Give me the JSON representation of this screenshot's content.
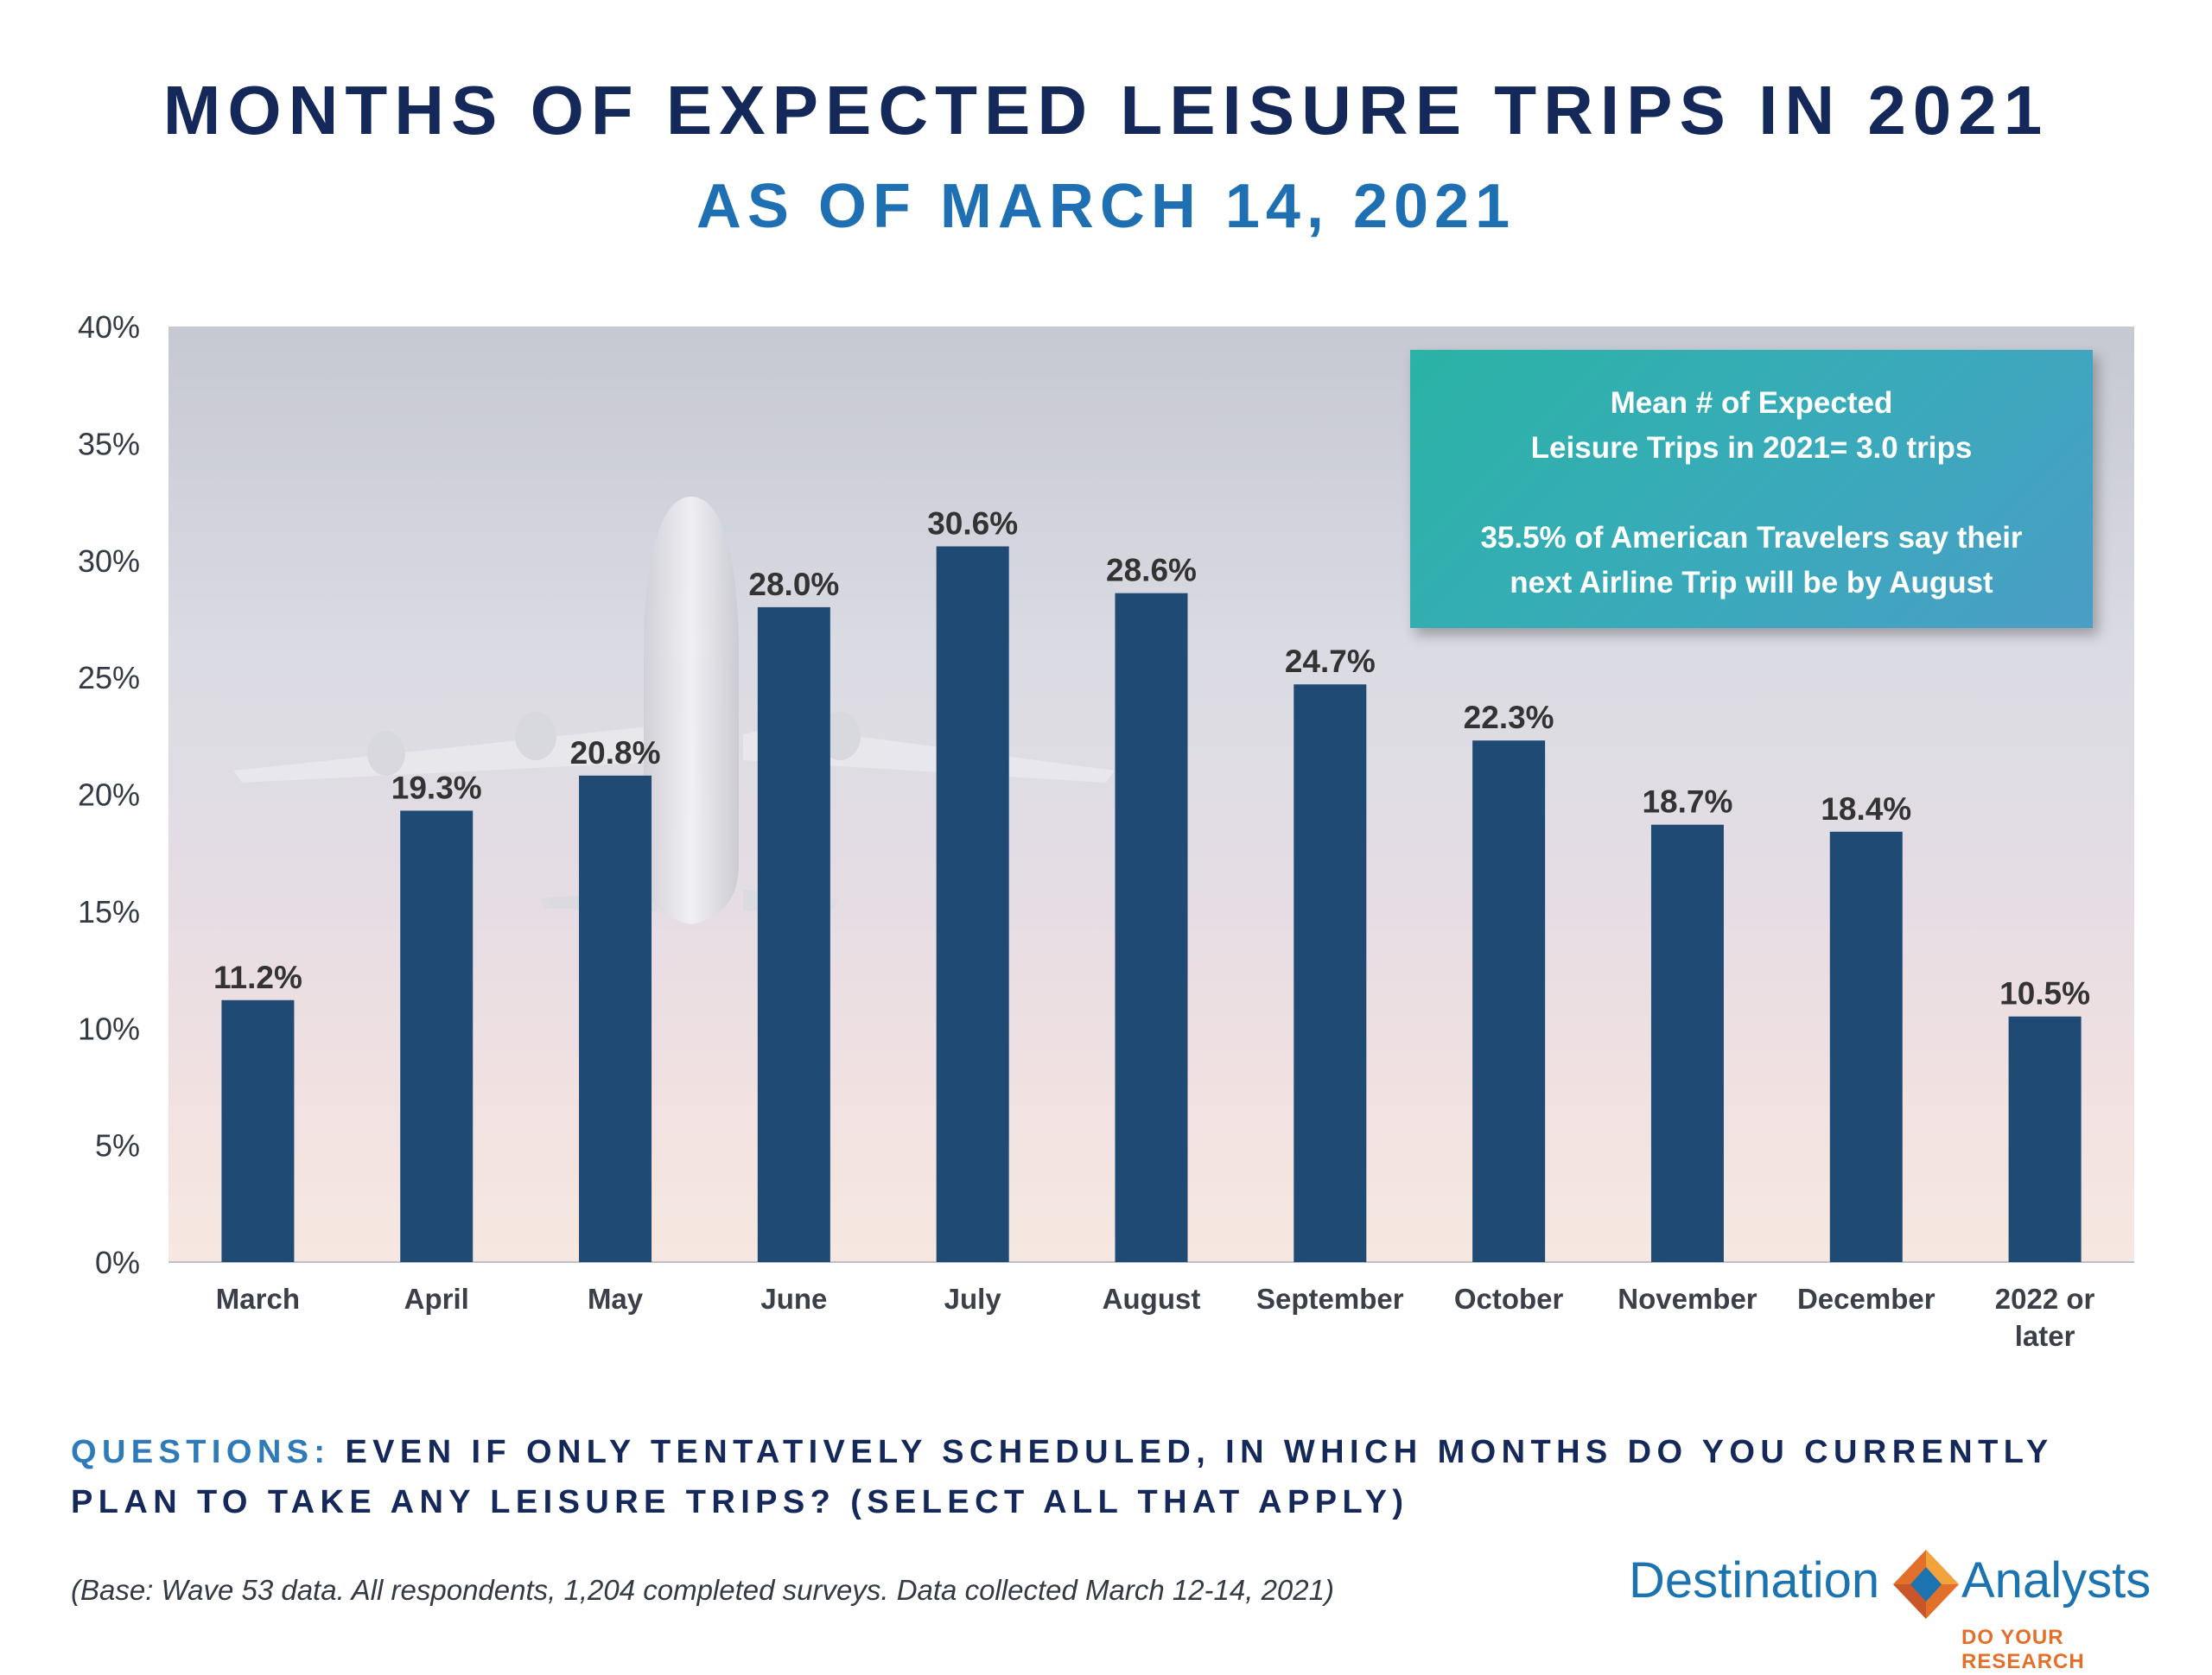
{
  "chart_data": {
    "type": "bar",
    "title": "MONTHS OF EXPECTED LEISURE TRIPS IN 2021",
    "subtitle": "AS OF MARCH 14, 2021",
    "categories": [
      "March",
      "April",
      "May",
      "June",
      "July",
      "August",
      "September",
      "October",
      "November",
      "December",
      "2022 or later"
    ],
    "category_lines": [
      [
        "March"
      ],
      [
        "April"
      ],
      [
        "May"
      ],
      [
        "June"
      ],
      [
        "July"
      ],
      [
        "August"
      ],
      [
        "September"
      ],
      [
        "October"
      ],
      [
        "November"
      ],
      [
        "December"
      ],
      [
        "2022 or",
        "later"
      ]
    ],
    "values": [
      11.2,
      19.3,
      20.8,
      28.0,
      30.6,
      28.6,
      24.7,
      22.3,
      18.7,
      18.4,
      10.5
    ],
    "labels": [
      "11.2%",
      "19.3%",
      "20.8%",
      "28.0%",
      "30.6%",
      "28.6%",
      "24.7%",
      "22.3%",
      "18.7%",
      "18.4%",
      "10.5%"
    ],
    "y_ticks": [
      0,
      5,
      10,
      15,
      20,
      25,
      30,
      35,
      40
    ],
    "y_tick_labels": [
      "0%",
      "5%",
      "10%",
      "15%",
      "20%",
      "25%",
      "30%",
      "35%",
      "40%"
    ],
    "ylim": [
      0,
      40
    ],
    "xlabel": "",
    "ylabel": "",
    "grid": false,
    "bar_color": "#1f4a74"
  },
  "callout": {
    "line1": "Mean # of Expected",
    "line2": "Leisure Trips in 2021= 3.0 trips",
    "line3": "35.5% of American Travelers say their",
    "line4": "next Airline Trip will be by August"
  },
  "question": {
    "label": "QUESTIONS:",
    "text": "EVEN IF ONLY TENTATIVELY SCHEDULED, IN WHICH MONTHS DO YOU CURRENTLY PLAN TO TAKE ANY LEISURE TRIPS? (SELECT ALL THAT APPLY)"
  },
  "base_note": "(Base: Wave 53 data. All respondents, 1,204 completed surveys. Data collected March 12-14, 2021)",
  "logo": {
    "word1": "Destination",
    "word2": "Analysts",
    "tagline": "DO YOUR RESEARCH"
  }
}
